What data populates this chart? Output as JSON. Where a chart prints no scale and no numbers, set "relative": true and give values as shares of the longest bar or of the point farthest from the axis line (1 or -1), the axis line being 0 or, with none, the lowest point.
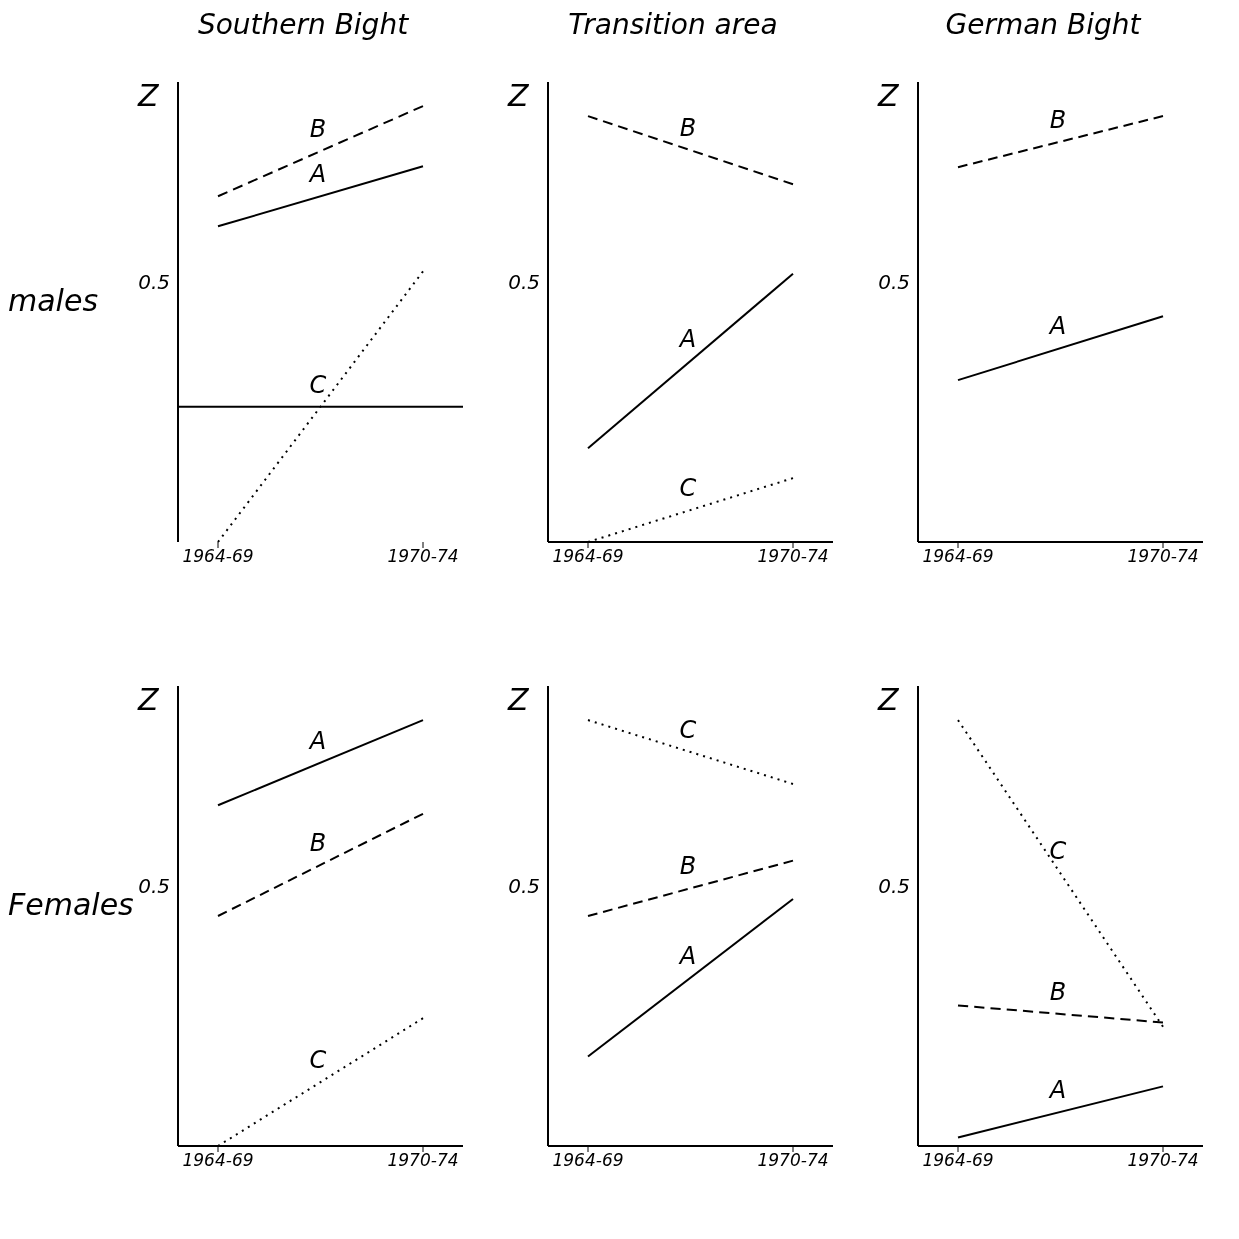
{
  "chart_data": [
    {
      "type": "line",
      "relative": true,
      "title": "Southern Bight",
      "ylabel": "Z",
      "annotations": [
        "0.5",
        "males"
      ],
      "categories": [
        "1964-69",
        "1970-74"
      ],
      "series": [
        {
          "name": "A",
          "color": "#000000",
          "line_style": "solid",
          "values": [
            0.6,
            0.8
          ]
        },
        {
          "name": "B",
          "color": "#000000",
          "line_style": "dashed",
          "values": [
            0.7,
            1
          ]
        },
        {
          "name": "C",
          "color": "#000000",
          "line_style": "dotted",
          "values": [
            -0.45,
            0.45
          ]
        }
      ]
    },
    {
      "type": "line",
      "relative": true,
      "title": "Transition area",
      "ylabel": "Z",
      "annotations": [
        "0.5"
      ],
      "categories": [
        "1964-69",
        "1970-74"
      ],
      "series": [
        {
          "name": "A",
          "color": "#000000",
          "line_style": "solid",
          "values": [
            0.22,
            0.63
          ]
        },
        {
          "name": "B",
          "color": "#000000",
          "line_style": "dashed",
          "values": [
            1,
            0.84
          ]
        },
        {
          "name": "C",
          "color": "#000000",
          "line_style": "dotted",
          "values": [
            0,
            0.15
          ]
        }
      ]
    },
    {
      "type": "line",
      "relative": true,
      "title": "German Bight",
      "ylabel": "Z",
      "annotations": [
        "0.5"
      ],
      "categories": [
        "1964-69",
        "1970-74"
      ],
      "series": [
        {
          "name": "A",
          "color": "#000000",
          "line_style": "solid",
          "values": [
            0.38,
            0.53
          ]
        },
        {
          "name": "B",
          "color": "#000000",
          "line_style": "dashed",
          "values": [
            0.88,
            1
          ]
        }
      ]
    },
    {
      "type": "line",
      "relative": true,
      "ylabel": "Z",
      "annotations": [
        "0.5",
        "Females"
      ],
      "categories": [
        "1964-69",
        "1970-74"
      ],
      "series": [
        {
          "name": "A",
          "color": "#000000",
          "line_style": "solid",
          "values": [
            0.8,
            1
          ]
        },
        {
          "name": "B",
          "color": "#000000",
          "line_style": "dashed",
          "values": [
            0.54,
            0.78
          ]
        },
        {
          "name": "C",
          "color": "#000000",
          "line_style": "dotted",
          "values": [
            0,
            0.3
          ]
        }
      ]
    },
    {
      "type": "line",
      "relative": true,
      "ylabel": "Z",
      "annotations": [
        "0.5"
      ],
      "categories": [
        "1964-69",
        "1970-74"
      ],
      "series": [
        {
          "name": "A",
          "color": "#000000",
          "line_style": "solid",
          "values": [
            0.21,
            0.58
          ]
        },
        {
          "name": "B",
          "color": "#000000",
          "line_style": "dashed",
          "values": [
            0.54,
            0.67
          ]
        },
        {
          "name": "C",
          "color": "#000000",
          "line_style": "dotted",
          "values": [
            1,
            0.85
          ]
        }
      ]
    },
    {
      "type": "line",
      "relative": true,
      "ylabel": "Z",
      "annotations": [
        "0.5"
      ],
      "categories": [
        "1964-69",
        "1970-74"
      ],
      "series": [
        {
          "name": "A",
          "color": "#000000",
          "line_style": "solid",
          "values": [
            0.02,
            0.14
          ]
        },
        {
          "name": "B",
          "color": "#000000",
          "line_style": "dashed",
          "values": [
            0.33,
            0.29
          ]
        },
        {
          "name": "C",
          "color": "#000000",
          "line_style": "dotted",
          "values": [
            1,
            0.28
          ]
        }
      ]
    }
  ]
}
